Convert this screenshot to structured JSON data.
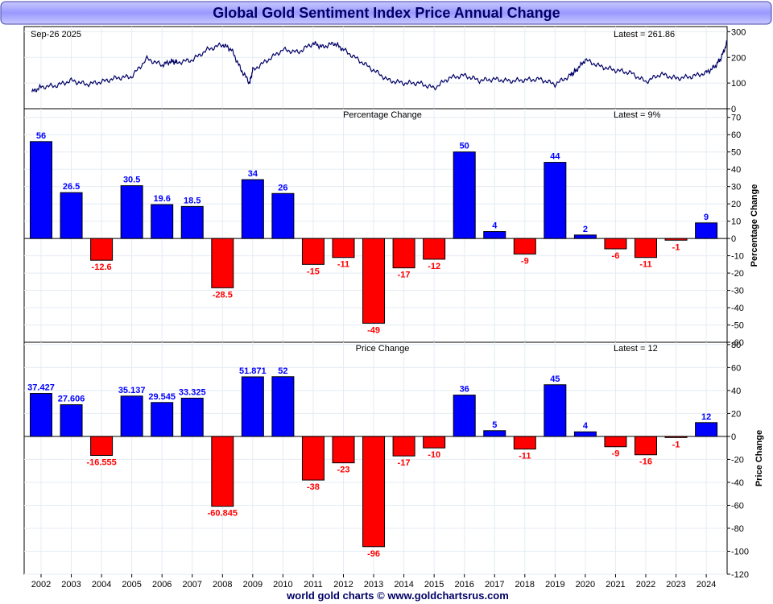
{
  "title": "Global Gold Sentiment Index Price Annual Change",
  "footer": "world gold charts © www.goldchartsrus.com",
  "colors": {
    "positive": "#0000ff",
    "negative": "#ff0000",
    "line": "#000066",
    "title_text": "#000066",
    "title_bg": "#9999ff"
  },
  "chart_data": [
    {
      "type": "line",
      "panel": "price",
      "date_label": "Sep-26  2025",
      "latest_label": "Latest = 261.86",
      "x": [
        2001.7,
        2002.0,
        2002.5,
        2003.0,
        2003.5,
        2004.0,
        2004.5,
        2005.0,
        2005.5,
        2006.0,
        2006.3,
        2006.5,
        2007.0,
        2007.5,
        2008.0,
        2008.3,
        2008.6,
        2008.9,
        2009.0,
        2009.5,
        2010.0,
        2010.5,
        2011.0,
        2011.3,
        2011.7,
        2012.0,
        2012.5,
        2013.0,
        2013.5,
        2014.0,
        2014.5,
        2015.0,
        2015.5,
        2016.0,
        2016.5,
        2017.0,
        2017.5,
        2018.0,
        2018.5,
        2019.0,
        2019.5,
        2019.7,
        2020.0,
        2020.5,
        2021.0,
        2021.5,
        2022.0,
        2022.5,
        2023.0,
        2023.5,
        2024.0,
        2024.3,
        2024.5,
        2024.7
      ],
      "values": [
        65,
        85,
        90,
        110,
        95,
        105,
        120,
        125,
        195,
        170,
        185,
        180,
        190,
        230,
        250,
        230,
        155,
        100,
        150,
        190,
        230,
        220,
        255,
        240,
        255,
        230,
        190,
        150,
        110,
        100,
        100,
        80,
        120,
        130,
        110,
        115,
        108,
        112,
        115,
        95,
        130,
        150,
        190,
        165,
        150,
        140,
        105,
        135,
        118,
        125,
        140,
        165,
        200,
        261.86
      ],
      "ylim": [
        0,
        320
      ],
      "yticks": [
        "300",
        "200",
        "100",
        "0"
      ]
    },
    {
      "type": "bar",
      "panel": "percentage",
      "title": "Percentage Change",
      "latest_label": "Latest = 9%",
      "ylabel": "Percentage Change",
      "categories": [
        "2002",
        "2003",
        "2004",
        "2005",
        "2006",
        "2007",
        "2008",
        "2009",
        "2010",
        "2011",
        "2012",
        "2013",
        "2014",
        "2015",
        "2016",
        "2017",
        "2018",
        "2019",
        "2020",
        "2021",
        "2022",
        "2023",
        "2024"
      ],
      "values": [
        56,
        26.5,
        -12.6,
        30.5,
        19.6,
        18.5,
        -28.5,
        34,
        26,
        -15,
        -11,
        -49,
        -17,
        -12,
        50,
        4,
        -9,
        44,
        2,
        -6,
        -11,
        -1,
        9
      ],
      "labels": [
        "56",
        "26.5",
        "-12.6",
        "30.5",
        "19.6",
        "18.5",
        "-28.5",
        "34",
        "26",
        "-15",
        "-11",
        "-49",
        "-17",
        "-12",
        "50",
        "4",
        "-9",
        "44",
        "2",
        "-6",
        "-11",
        "-1",
        "9"
      ],
      "ylim": [
        -60,
        75
      ],
      "yticks": [
        "70",
        "60",
        "50",
        "40",
        "30",
        "20",
        "10",
        "0",
        "-10",
        "-20",
        "-30",
        "-40",
        "-50",
        "-60"
      ]
    },
    {
      "type": "bar",
      "panel": "price-change",
      "title": "Price Change",
      "latest_label": "Latest = 12",
      "ylabel": "Price Change",
      "categories": [
        "2002",
        "2003",
        "2004",
        "2005",
        "2006",
        "2007",
        "2008",
        "2009",
        "2010",
        "2011",
        "2012",
        "2013",
        "2014",
        "2015",
        "2016",
        "2017",
        "2018",
        "2019",
        "2020",
        "2021",
        "2022",
        "2023",
        "2024"
      ],
      "values": [
        37.427,
        27.606,
        -16.555,
        35.137,
        29.545,
        33.325,
        -60.845,
        51.871,
        52,
        -38,
        -23,
        -96,
        -17,
        -10,
        36,
        5,
        -11,
        45,
        4,
        -9,
        -16,
        -1,
        12
      ],
      "labels": [
        "37.427",
        "27.606",
        "-16.555",
        "35.137",
        "29.545",
        "33.325",
        "-60.845",
        "51.871",
        "52",
        "-38",
        "-23",
        "-96",
        "-17",
        "-10",
        "36",
        "5",
        "-11",
        "45",
        "4",
        "-9",
        "-16",
        "-1",
        "12"
      ],
      "ylim": [
        -120,
        82
      ],
      "yticks": [
        "80",
        "60",
        "40",
        "20",
        "0",
        "-20",
        "-40",
        "-60",
        "-80",
        "-100",
        "-120"
      ]
    }
  ]
}
